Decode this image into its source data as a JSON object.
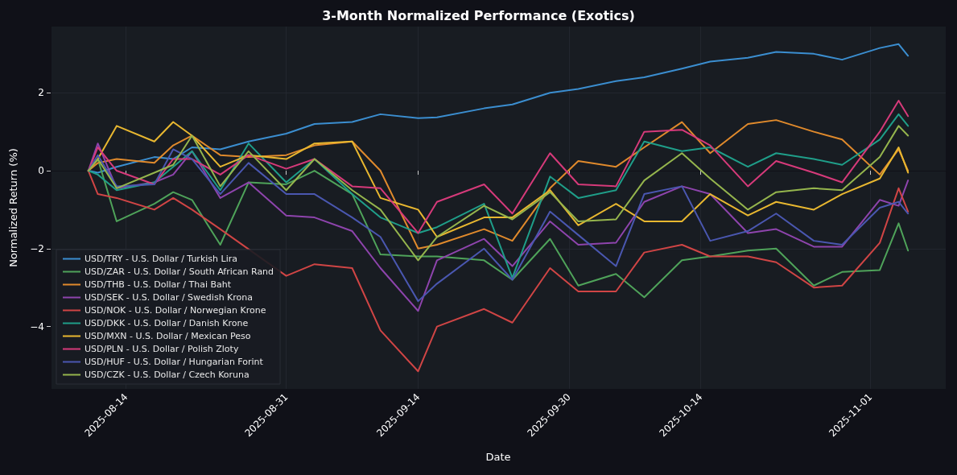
{
  "chart_data": {
    "type": "line",
    "title": "3-Month Normalized Performance (Exotics)",
    "xlabel": "Date",
    "ylabel": "Normalized Return (%)",
    "x": [
      "2025-08-10",
      "2025-08-11",
      "2025-08-13",
      "2025-08-17",
      "2025-08-19",
      "2025-08-21",
      "2025-08-24",
      "2025-08-27",
      "2025-08-31",
      "2025-09-03",
      "2025-09-07",
      "2025-09-10",
      "2025-09-14",
      "2025-09-16",
      "2025-09-21",
      "2025-09-24",
      "2025-09-28",
      "2025-10-01",
      "2025-10-05",
      "2025-10-08",
      "2025-10-12",
      "2025-10-15",
      "2025-10-19",
      "2025-10-22",
      "2025-10-26",
      "2025-10-29",
      "2025-11-02",
      "2025-11-04",
      "2025-11-05"
    ],
    "series": [
      {
        "name": "USD/TRY - U.S. Dollar / Turkish Lira",
        "color": "#3b8ed0",
        "values": [
          0,
          -0.05,
          0.1,
          0.35,
          0.3,
          0.6,
          0.55,
          0.75,
          0.95,
          1.2,
          1.25,
          1.45,
          1.35,
          1.37,
          1.6,
          1.7,
          2.0,
          2.1,
          2.3,
          2.4,
          2.62,
          2.8,
          2.9,
          3.05,
          3.0,
          2.85,
          3.15,
          3.25,
          2.95
        ]
      },
      {
        "name": "USD/ZAR - U.S. Dollar / South African Rand",
        "color": "#4fa35a",
        "values": [
          0,
          0.3,
          -1.3,
          -0.85,
          -0.55,
          -0.75,
          -1.9,
          -0.3,
          -0.35,
          0.0,
          -0.6,
          -2.15,
          -2.2,
          -2.2,
          -2.3,
          -2.8,
          -1.75,
          -2.95,
          -2.65,
          -3.25,
          -2.3,
          -2.2,
          -2.05,
          -2.0,
          -2.95,
          -2.6,
          -2.55,
          -1.35,
          -2.05
        ]
      },
      {
        "name": "USD/THB - U.S. Dollar / Thai Baht",
        "color": "#e08a2c",
        "values": [
          0,
          0.2,
          0.3,
          0.2,
          0.65,
          0.9,
          0.4,
          0.35,
          0.4,
          0.65,
          0.75,
          0.0,
          -2.0,
          -1.9,
          -1.5,
          -1.8,
          -0.45,
          0.25,
          0.1,
          0.6,
          1.25,
          0.45,
          1.2,
          1.3,
          1.0,
          0.8,
          -0.1,
          0.55,
          0.0
        ]
      },
      {
        "name": "USD/SEK - U.S. Dollar / Swedish Krona",
        "color": "#8e44ad",
        "values": [
          0,
          0.7,
          -0.45,
          -0.3,
          -0.1,
          0.5,
          -0.7,
          -0.3,
          -1.15,
          -1.2,
          -1.55,
          -2.5,
          -3.6,
          -2.3,
          -1.75,
          -2.45,
          -1.3,
          -1.9,
          -1.85,
          -0.8,
          -0.4,
          -0.6,
          -1.6,
          -1.5,
          -1.95,
          -1.95,
          -0.75,
          -0.9,
          -0.25
        ]
      },
      {
        "name": "USD/NOK - U.S. Dollar / Norwegian Krone",
        "color": "#d04545",
        "values": [
          0,
          -0.6,
          -0.7,
          -1.0,
          -0.7,
          -1.0,
          -1.5,
          null,
          -2.7,
          -2.4,
          -2.5,
          -4.1,
          -5.15,
          -4.0,
          -3.55,
          -3.9,
          -2.5,
          -3.1,
          -3.1,
          -2.1,
          -1.9,
          -2.2,
          -2.2,
          -2.35,
          -3.0,
          -2.95,
          -1.85,
          -0.45,
          -1.05
        ]
      },
      {
        "name": "USD/DKK - U.S. Dollar / Danish Krone",
        "color": "#1f9e89",
        "values": [
          0,
          -0.1,
          -0.5,
          -0.3,
          0.1,
          0.5,
          -0.5,
          0.7,
          -0.3,
          0.3,
          -0.6,
          -1.2,
          -1.6,
          -1.45,
          -0.85,
          -2.75,
          -0.15,
          -0.7,
          -0.5,
          0.75,
          0.5,
          0.6,
          0.1,
          0.45,
          0.3,
          0.15,
          0.8,
          1.45,
          1.15
        ]
      },
      {
        "name": "USD/MXN - U.S. Dollar / Mexican Peso",
        "color": "#e8b730",
        "values": [
          0,
          0.3,
          1.15,
          0.75,
          1.25,
          0.9,
          0.1,
          0.4,
          0.3,
          0.7,
          0.75,
          -0.7,
          -1.0,
          -1.7,
          -1.2,
          -1.2,
          -0.5,
          -1.4,
          -0.85,
          -1.3,
          -1.3,
          -0.6,
          -1.15,
          -0.8,
          -1.0,
          -0.6,
          -0.2,
          0.6,
          -0.05
        ]
      },
      {
        "name": "USD/PLN - U.S. Dollar / Polish Zloty",
        "color": "#d63a7a",
        "values": [
          0,
          0.6,
          0.0,
          -0.35,
          0.3,
          0.3,
          -0.1,
          0.4,
          0.05,
          0.3,
          -0.4,
          -0.45,
          -1.6,
          -0.8,
          -0.35,
          -1.1,
          0.45,
          -0.35,
          -0.4,
          1.0,
          1.05,
          0.65,
          -0.4,
          0.25,
          -0.05,
          -0.3,
          1.0,
          1.8,
          1.4
        ]
      },
      {
        "name": "USD/HUF - U.S. Dollar / Hungarian Forint",
        "color": "#4a57b0",
        "values": [
          0,
          0.4,
          -0.4,
          -0.35,
          0.55,
          0.3,
          -0.6,
          0.2,
          -0.6,
          -0.6,
          -1.2,
          -1.7,
          -3.35,
          -2.9,
          -2.0,
          -2.8,
          -1.05,
          -1.65,
          -2.45,
          -0.6,
          -0.4,
          -1.8,
          -1.55,
          -1.1,
          -1.8,
          -1.9,
          -0.95,
          -0.8,
          -1.1
        ]
      },
      {
        "name": "USD/CZK - U.S. Dollar / Czech Koruna",
        "color": "#95b54d",
        "values": [
          0,
          0.3,
          -0.45,
          -0.05,
          0.15,
          0.9,
          -0.4,
          0.5,
          -0.5,
          0.3,
          -0.5,
          -1.0,
          -2.3,
          -1.7,
          -0.9,
          -1.25,
          -0.55,
          -1.3,
          -1.25,
          -0.25,
          0.45,
          -0.2,
          -1.0,
          -0.55,
          -0.45,
          -0.5,
          0.35,
          1.15,
          0.9
        ]
      }
    ],
    "xlim": [
      "2025-08-06",
      "2025-11-09"
    ],
    "xticks": [
      "2025-08-14",
      "2025-08-31",
      "2025-09-14",
      "2025-09-30",
      "2025-10-14",
      "2025-11-01"
    ],
    "ylim": [
      -5.6,
      3.7
    ],
    "yticks": [
      -4,
      -2,
      0,
      2
    ],
    "grid": true,
    "legend": "bottom left",
    "marker": "none",
    "line_style": "solid"
  }
}
